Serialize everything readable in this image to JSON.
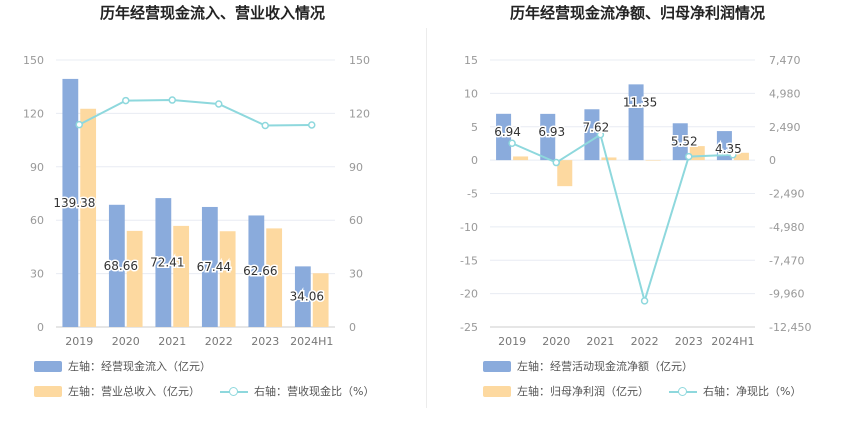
{
  "colors": {
    "bar_primary": "#8aabdc",
    "bar_secondary": "#fdd9a0",
    "line": "#8ed8dd",
    "grid": "#e8ecf3",
    "axis_text": "#999999"
  },
  "chart_data": [
    {
      "type": "bar",
      "title": "历年经营现金流入、营业收入情况",
      "categories": [
        "2019",
        "2020",
        "2021",
        "2022",
        "2023",
        "2024H1"
      ],
      "y_left": {
        "ticks": [
          "0",
          "30",
          "60",
          "90",
          "120",
          "150"
        ],
        "ylim": [
          0,
          150
        ]
      },
      "y_right": {
        "ticks": [
          "0",
          "30",
          "60",
          "90",
          "120",
          "150"
        ],
        "ylim": [
          0,
          150
        ]
      },
      "series": [
        {
          "name": "左轴：经营现金流入（亿元）",
          "type": "bar",
          "axis": "left",
          "values": [
            139.38,
            68.66,
            72.41,
            67.44,
            62.66,
            34.06
          ],
          "labels": [
            "139.38",
            "68.66",
            "72.41",
            "67.44",
            "62.66",
            "34.06"
          ]
        },
        {
          "name": "左轴：营业总收入（亿元）",
          "type": "bar",
          "axis": "left",
          "values": [
            122.6,
            54.0,
            56.8,
            53.8,
            55.4,
            30.2
          ]
        },
        {
          "name": "右轴：营收现金比（%）",
          "type": "line",
          "axis": "right",
          "values": [
            113.7,
            127.2,
            127.5,
            125.3,
            113.2,
            113.5
          ]
        }
      ],
      "grid": true,
      "legend": "bottom"
    },
    {
      "type": "bar",
      "title": "历年经营现金流净额、归母净利润情况",
      "categories": [
        "2019",
        "2020",
        "2021",
        "2022",
        "2023",
        "2024H1"
      ],
      "y_left": {
        "ticks": [
          "-25",
          "-20",
          "-15",
          "-10",
          "-5",
          "0",
          "5",
          "10",
          "15"
        ],
        "ylim": [
          -25,
          15
        ]
      },
      "y_right": {
        "ticks": [
          "-12,450",
          "-9,960",
          "-7,470",
          "-4,980",
          "-2,490",
          "0",
          "2,490",
          "4,980",
          "7,470"
        ],
        "ylim": [
          -12450,
          7470
        ]
      },
      "series": [
        {
          "name": "左轴：经营活动现金流净额（亿元）",
          "type": "bar",
          "axis": "left",
          "values": [
            6.94,
            6.93,
            7.62,
            11.35,
            5.52,
            4.35
          ],
          "labels": [
            "6.94",
            "6.93",
            "7.62",
            "11.35",
            "5.52",
            "4.35"
          ]
        },
        {
          "name": "左轴：归母净利润（亿元）",
          "type": "bar",
          "axis": "left",
          "values": [
            0.55,
            -3.9,
            0.4,
            -0.05,
            2.1,
            1.1
          ]
        },
        {
          "name": "右轴：净现比（%）",
          "type": "line",
          "axis": "right",
          "values": [
            1260,
            -180,
            1900,
            -10500,
            265,
            400
          ]
        }
      ],
      "grid": true,
      "legend": "bottom"
    }
  ]
}
